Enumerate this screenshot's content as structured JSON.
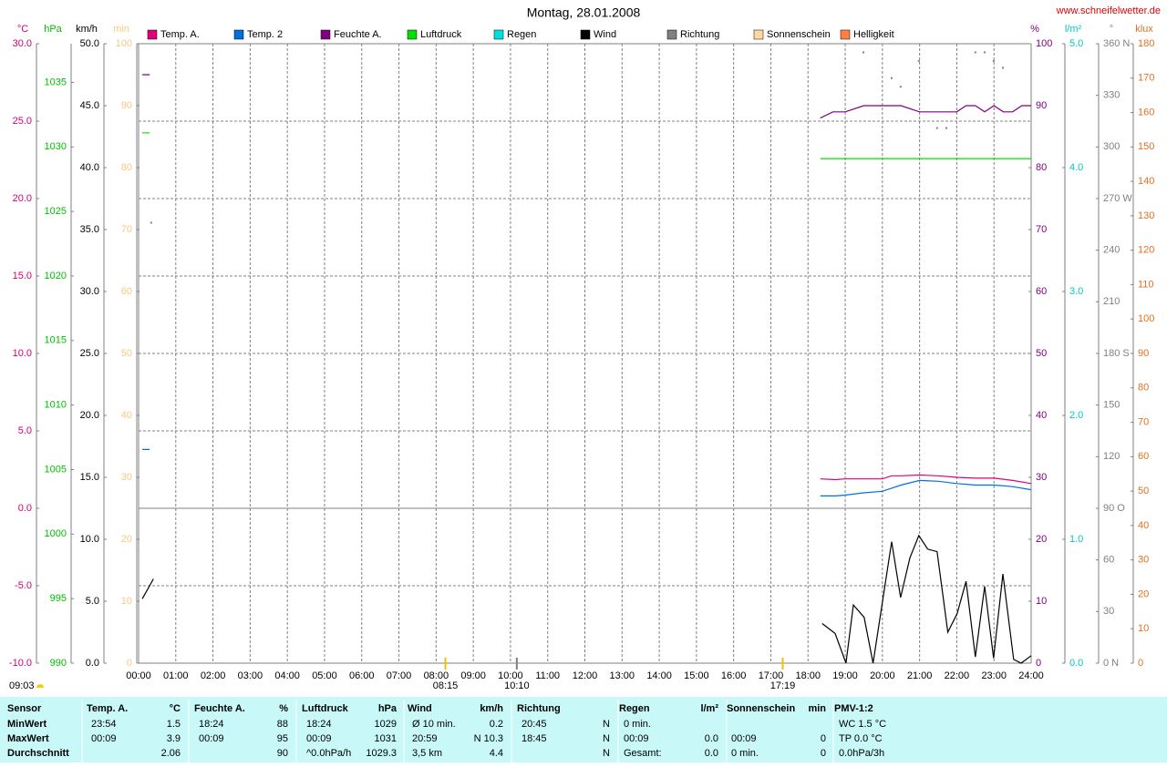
{
  "chart_data": {
    "type": "line",
    "title": "Montag, 28.01.2008",
    "source": "www.schneifelwetter.de",
    "xlim": [
      0,
      24
    ],
    "xticks": [
      {
        "value": 0,
        "label": "00:00"
      },
      {
        "value": 1,
        "label": "01:00"
      },
      {
        "value": 2,
        "label": "02:00"
      },
      {
        "value": 3,
        "label": "03:00"
      },
      {
        "value": 4,
        "label": "04:00"
      },
      {
        "value": 5,
        "label": "05:00"
      },
      {
        "value": 6,
        "label": "06:00"
      },
      {
        "value": 7,
        "label": "07:00"
      },
      {
        "value": 8,
        "label": "08:00"
      },
      {
        "value": 9,
        "label": "09:00"
      },
      {
        "value": 10,
        "label": "10:00"
      },
      {
        "value": 11,
        "label": "11:00"
      },
      {
        "value": 12,
        "label": "12:00"
      },
      {
        "value": 13,
        "label": "13:00"
      },
      {
        "value": 14,
        "label": "14:00"
      },
      {
        "value": 15,
        "label": "15:00"
      },
      {
        "value": 16,
        "label": "16:00"
      },
      {
        "value": 17,
        "label": "17:00"
      },
      {
        "value": 18,
        "label": "18:00"
      },
      {
        "value": 19,
        "label": "19:00"
      },
      {
        "value": 20,
        "label": "20:00"
      },
      {
        "value": 21,
        "label": "21:00"
      },
      {
        "value": 22,
        "label": "22:00"
      },
      {
        "value": 23,
        "label": "23:00"
      },
      {
        "value": 24,
        "label": "24:00"
      }
    ],
    "grid": true,
    "axes": [
      {
        "label": "°C",
        "color": "#d0007a",
        "lim": [
          -10,
          30
        ],
        "ticks": [
          {
            "value": 30,
            "label": "30.0"
          },
          {
            "value": 25,
            "label": "25.0"
          },
          {
            "value": 20,
            "label": "20.0"
          },
          {
            "value": 15,
            "label": "15.0"
          },
          {
            "value": 10,
            "label": "10.0"
          },
          {
            "value": 5,
            "label": "5.0"
          },
          {
            "value": 0,
            "label": "0.0"
          },
          {
            "value": -5,
            "label": "-5.0"
          },
          {
            "value": -10,
            "label": "-10.0"
          }
        ]
      },
      {
        "label": "hPa",
        "color": "#00c000",
        "lim": [
          990,
          1038
        ],
        "ticks": [
          1035,
          1030,
          1025,
          1020,
          1015,
          1010,
          1005,
          1000,
          995,
          990
        ]
      },
      {
        "label": "km/h",
        "color": "#000000",
        "lim": [
          0,
          50
        ],
        "ticks": [
          {
            "value": 50,
            "label": "50.0"
          },
          {
            "value": 45,
            "label": "45.0"
          },
          {
            "value": 40,
            "label": "40.0"
          },
          {
            "value": 35,
            "label": "35.0"
          },
          {
            "value": 30,
            "label": "30.0"
          },
          {
            "value": 25,
            "label": "25.0"
          },
          {
            "value": 20,
            "label": "20.0"
          },
          {
            "value": 15,
            "label": "15.0"
          },
          {
            "value": 10,
            "label": "10.0"
          },
          {
            "value": 5,
            "label": "5.0"
          },
          {
            "value": 0,
            "label": "0.0"
          }
        ]
      },
      {
        "label": "min",
        "color": "#f8c880",
        "lim": [
          0,
          100
        ],
        "ticks": [
          100,
          90,
          80,
          70,
          60,
          50,
          40,
          30,
          20,
          10,
          0
        ]
      },
      {
        "label": "%",
        "color": "#800080",
        "lim": [
          0,
          100
        ],
        "ticks": [
          100,
          90,
          80,
          70,
          60,
          50,
          40,
          30,
          20,
          10,
          0
        ]
      },
      {
        "label": "l/m²",
        "color": "#00c8c8",
        "lim": [
          0,
          5
        ],
        "ticks": [
          {
            "value": 5,
            "label": "5.0"
          },
          {
            "value": 4,
            "label": "4.0"
          },
          {
            "value": 3,
            "label": "3.0"
          },
          {
            "value": 2,
            "label": "2.0"
          },
          {
            "value": 1,
            "label": "1.0"
          },
          {
            "value": 0,
            "label": "0.0"
          }
        ]
      },
      {
        "label": "°",
        "color": "#808080",
        "lim": [
          0,
          360
        ],
        "ticks": [
          {
            "value": 360,
            "label": "360 N"
          },
          330,
          300,
          {
            "value": 270,
            "label": "270 W"
          },
          240,
          210,
          {
            "value": 180,
            "label": "180 S"
          },
          150,
          120,
          {
            "value": 90,
            "label": "90 O"
          },
          60,
          30,
          {
            "value": 0,
            "label": "0 N"
          }
        ]
      },
      {
        "label": "klux",
        "color": "#e07020",
        "lim": [
          0,
          180
        ],
        "ticks": [
          180,
          170,
          160,
          150,
          140,
          130,
          120,
          110,
          100,
          90,
          80,
          70,
          60,
          50,
          40,
          30,
          20,
          10,
          0
        ]
      }
    ],
    "series": [
      {
        "name": "Temp. A.",
        "color": "#e0007a",
        "axis": 0,
        "x": [
          18.33,
          18.75,
          19.0,
          19.5,
          20.0,
          20.25,
          20.5,
          21.0,
          21.5,
          22.0,
          22.5,
          23.0,
          23.5,
          24.0
        ],
        "values": [
          1.9,
          1.85,
          1.9,
          1.9,
          1.9,
          2.1,
          2.1,
          2.15,
          2.1,
          2.0,
          1.95,
          1.95,
          1.8,
          1.6
        ]
      },
      {
        "name": "Temp. 2",
        "color": "#0070e0",
        "axis": 0,
        "x": [
          0.1,
          0.3,
          null,
          18.33,
          18.75,
          19.0,
          19.5,
          20.0,
          20.25,
          20.5,
          21.0,
          21.5,
          22.0,
          22.5,
          23.0,
          23.5,
          24.0
        ],
        "values": [
          3.8,
          3.8,
          null,
          0.8,
          0.8,
          0.85,
          1.0,
          1.1,
          1.3,
          1.5,
          1.8,
          1.75,
          1.6,
          1.5,
          1.5,
          1.4,
          1.2
        ]
      },
      {
        "name": "Feuchte A.",
        "color": "#800080",
        "axis": 4,
        "x": [
          0.1,
          0.3,
          null,
          18.33,
          18.67,
          19.0,
          19.5,
          20.0,
          20.5,
          21.0,
          21.5,
          22.0,
          22.25,
          22.5,
          22.75,
          23.0,
          23.25,
          23.5,
          23.75,
          24.0
        ],
        "values": [
          95,
          95,
          null,
          88,
          89,
          89,
          90,
          90,
          90,
          89,
          89,
          89,
          90,
          90,
          89,
          90,
          89,
          89,
          90,
          90
        ]
      },
      {
        "name": "Luftdruck",
        "color": "#00e000",
        "axis": 1,
        "x": [
          0.1,
          0.3,
          null,
          18.33,
          24.0
        ],
        "values": [
          1031.1,
          1031.1,
          null,
          1029.1,
          1029.1
        ]
      },
      {
        "name": "Regen",
        "color": "#00e0e0",
        "axis": 5,
        "x": [],
        "values": []
      },
      {
        "name": "Wind",
        "color": "#000000",
        "axis": 2,
        "x": [
          0.1,
          0.4,
          null,
          18.38,
          18.73,
          19.02,
          19.22,
          19.51,
          19.75,
          20.25,
          20.49,
          20.74,
          20.98,
          21.22,
          21.47,
          21.76,
          22.01,
          22.25,
          22.5,
          22.75,
          22.99,
          23.24,
          23.53,
          23.73,
          24.0
        ],
        "values": [
          5.2,
          6.8,
          null,
          3.2,
          2.4,
          0,
          4.7,
          3.7,
          0,
          9.8,
          5.3,
          8.5,
          10.3,
          9.2,
          9.0,
          2.5,
          4.0,
          6.6,
          0.5,
          6.2,
          0.4,
          7.2,
          0.3,
          0,
          0.6
        ]
      },
      {
        "name": "Richtung",
        "color": "#808080",
        "axis": 6,
        "style": "dots",
        "x": [
          0.34,
          19.49,
          20.25,
          20.49,
          20.98,
          21.47,
          21.72,
          22.5,
          22.75,
          22.99,
          23.24
        ],
        "values": [
          256,
          355,
          340,
          335,
          350,
          311,
          311,
          355,
          355,
          350,
          346
        ]
      },
      {
        "name": "Sonnenschein",
        "color": "#ffd8a0",
        "axis": 3,
        "x": [],
        "values": []
      },
      {
        "name": "Helligkeit",
        "color": "#ff8040",
        "axis": 7,
        "x": [],
        "values": []
      }
    ],
    "day_length": "09:03",
    "markers": [
      {
        "label": "08:15",
        "x": 8.25,
        "color": "#f0c000"
      },
      {
        "label": "10:10",
        "x": 10.17,
        "color": "#808080"
      },
      {
        "label": "17:19",
        "x": 17.32,
        "color": "#f0c000"
      }
    ]
  },
  "table": {
    "header": [
      "Sensor",
      "Temp. A.",
      "°C",
      "Feuchte A.",
      "%",
      "Luftdruck",
      "hPa",
      "Wind",
      "km/h",
      "Richtung",
      null,
      "Regen",
      "l/m²",
      "Sonnenschein",
      "min",
      "PMV-1:2"
    ],
    "rows": [
      [
        "MinWert",
        "23:54",
        "1.5",
        "18:24",
        "88",
        "18:24",
        "1029",
        "Ø 10 min.",
        "0.2",
        "20:45",
        "N",
        "0 min.",
        null,
        null,
        null,
        "WC 1.5 °C"
      ],
      [
        "MaxWert",
        "00:09",
        "3.9",
        "00:09",
        "95",
        "00:09",
        "1031",
        "20:59",
        "N 10.3",
        "18:45",
        "N",
        "00:09",
        "0.0",
        "00:09",
        "0",
        "TP 0.0 °C"
      ],
      [
        "Durchschnitt",
        null,
        "2.06",
        null,
        "90",
        "^0.0hPa/h",
        "1029.3",
        "3,5 km",
        "4.4",
        null,
        "N",
        "Gesamt:",
        "0.0",
        "0 min.",
        "0",
        "0.0hPa/3h"
      ]
    ]
  }
}
